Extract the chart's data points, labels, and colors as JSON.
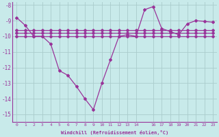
{
  "xlabel": "Windchill (Refroidissement éolien,°C)",
  "bg_color": "#c8eaea",
  "grid_color": "#aacccc",
  "line_color": "#993399",
  "xlim": [
    -0.5,
    23.5
  ],
  "ylim": [
    -15.5,
    -7.8
  ],
  "yticks": [
    -8,
    -9,
    -10,
    -11,
    -12,
    -13,
    -14,
    -15
  ],
  "xtick_positions": [
    0,
    1,
    2,
    3,
    4,
    5,
    6,
    7,
    8,
    9,
    10,
    11,
    12,
    13,
    14,
    16,
    17,
    18,
    19,
    20,
    21,
    22,
    23
  ],
  "xtick_labels": [
    "0",
    "1",
    "2",
    "3",
    "4",
    "5",
    "6",
    "7",
    "8",
    "9",
    "10",
    "11",
    "12",
    "13",
    "14",
    "16",
    "17",
    "18",
    "19",
    "20",
    "21",
    "22",
    "23"
  ],
  "line1": [
    -8.8,
    -9.3,
    -10.0,
    -10.0,
    -10.5,
    -12.2,
    -12.5,
    -13.2,
    -14.0,
    -14.7,
    -13.0,
    -11.5,
    -10.0,
    -9.9,
    -10.0,
    -8.3,
    -8.1,
    -9.5,
    -9.7,
    -9.9,
    -9.2,
    -9.0,
    -9.05,
    -9.1
  ],
  "line2": [
    -10.0,
    -10.0,
    -10.0,
    -10.0,
    -10.0,
    -10.0,
    -10.0,
    -10.0,
    -10.0,
    -10.0,
    -10.0,
    -10.0,
    -10.0,
    -10.0,
    -10.0,
    -10.0,
    -10.0,
    -10.0,
    -10.0,
    -10.0,
    -10.0,
    -10.0,
    -10.0,
    -10.0
  ],
  "line3": [
    -9.8,
    -9.8,
    -9.8,
    -9.8,
    -9.8,
    -9.8,
    -9.8,
    -9.8,
    -9.8,
    -9.8,
    -9.8,
    -9.8,
    -9.8,
    -9.8,
    -9.8,
    -9.8,
    -9.8,
    -9.8,
    -9.8,
    -9.8,
    -9.8,
    -9.8,
    -9.8,
    -9.8
  ],
  "line4": [
    -9.6,
    -9.6,
    -9.6,
    -9.6,
    -9.6,
    -9.6,
    -9.6,
    -9.6,
    -9.6,
    -9.6,
    -9.6,
    -9.6,
    -9.6,
    -9.6,
    -9.6,
    -9.6,
    -9.6,
    -9.6,
    -9.6,
    -9.6,
    -9.6,
    -9.6,
    -9.6,
    -9.6
  ]
}
